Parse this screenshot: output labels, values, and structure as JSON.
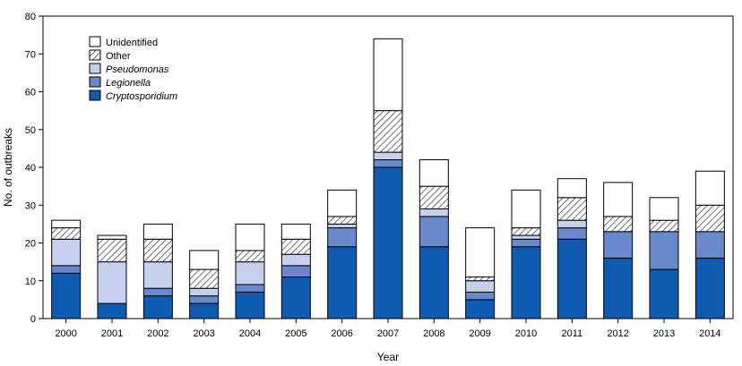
{
  "chart_data": {
    "type": "bar",
    "stacked": true,
    "xlabel": "Year",
    "ylabel": "No. of outbreaks",
    "ylim": [
      0,
      80
    ],
    "yticks": [
      0,
      10,
      20,
      30,
      40,
      50,
      60,
      70,
      80
    ],
    "legend_position": "top-left",
    "categories": [
      "2000",
      "2001",
      "2002",
      "2003",
      "2004",
      "2005",
      "2006",
      "2007",
      "2008",
      "2009",
      "2010",
      "2011",
      "2012",
      "2013",
      "2014"
    ],
    "series": [
      {
        "name": "Cryptosporidium",
        "color": "#0f5bb0",
        "pattern": "solid",
        "italic": true,
        "values": [
          12,
          4,
          6,
          4,
          7,
          11,
          19,
          40,
          19,
          5,
          19,
          21,
          16,
          13,
          16
        ]
      },
      {
        "name": "Legionella",
        "color": "#6a88cc",
        "pattern": "solid",
        "italic": true,
        "values": [
          2,
          0,
          2,
          2,
          2,
          3,
          5,
          2,
          8,
          2,
          2,
          3,
          7,
          10,
          7
        ]
      },
      {
        "name": "Pseudomonas",
        "color": "#c6d1ee",
        "pattern": "solid",
        "italic": true,
        "values": [
          7,
          11,
          7,
          2,
          6,
          3,
          1,
          2,
          2,
          3,
          1,
          2,
          0,
          0,
          0
        ]
      },
      {
        "name": "Other",
        "color": "#ffffff",
        "pattern": "hatch",
        "italic": false,
        "values": [
          3,
          6,
          6,
          5,
          3,
          4,
          2,
          11,
          6,
          1,
          2,
          6,
          4,
          3,
          7
        ]
      },
      {
        "name": "Unidentified",
        "color": "#ffffff",
        "pattern": "solid",
        "italic": false,
        "values": [
          2,
          1,
          4,
          5,
          7,
          4,
          7,
          19,
          7,
          13,
          10,
          5,
          9,
          6,
          9
        ]
      }
    ]
  }
}
